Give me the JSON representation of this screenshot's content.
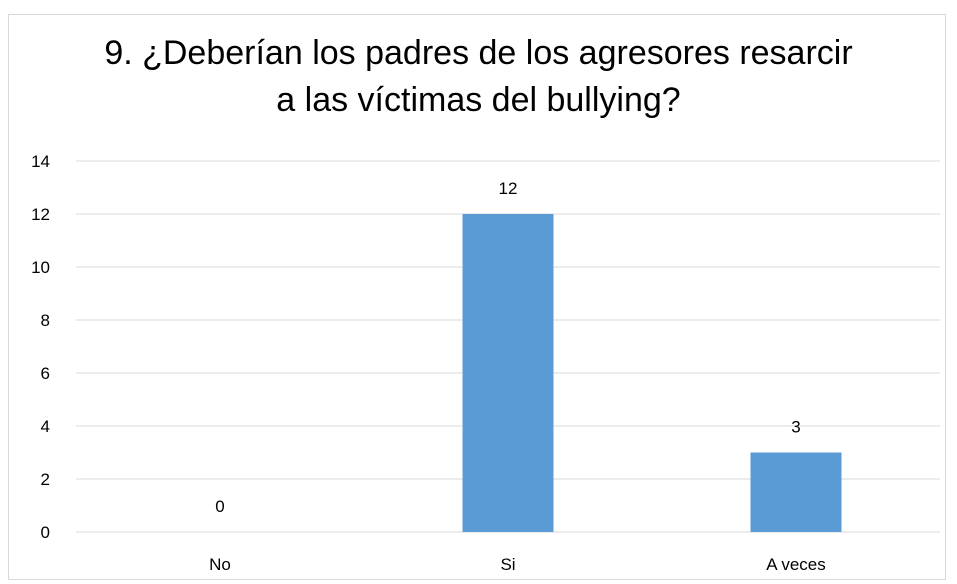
{
  "chart_data": {
    "type": "bar",
    "title_lines": [
      "9. ¿Deberían los padres de los agresores resarcir",
      "a las víctimas del bullying?"
    ],
    "categories": [
      "No",
      "Si",
      "A veces"
    ],
    "values": [
      0,
      12,
      3
    ],
    "data_labels": [
      "0",
      "12",
      "3"
    ],
    "xlabel": "",
    "ylabel": "",
    "ylim": [
      0,
      14
    ],
    "yticks": [
      0,
      2,
      4,
      6,
      8,
      10,
      12,
      14
    ],
    "grid": true,
    "legend": "none",
    "bar_color": "#5b9bd5",
    "grid_color": "#d9d9d9"
  }
}
